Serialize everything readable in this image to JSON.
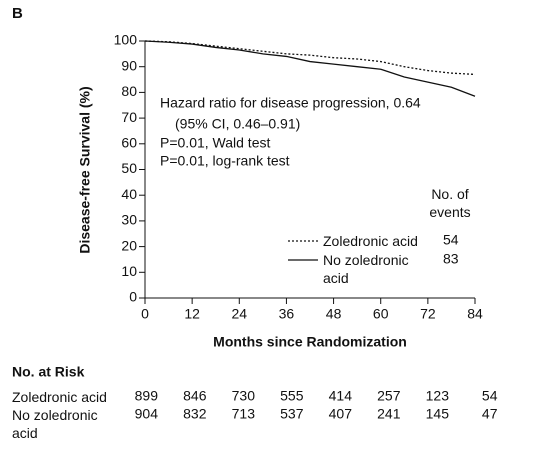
{
  "chart_data": {
    "type": "line",
    "panel_label": "B",
    "xlabel": "Months since Randomization",
    "ylabel": "Disease-free Survival (%)",
    "x": [
      0,
      6,
      12,
      18,
      24,
      30,
      36,
      42,
      48,
      54,
      60,
      66,
      72,
      78,
      84
    ],
    "xlim": [
      0,
      84
    ],
    "xticks": [
      0,
      12,
      24,
      36,
      48,
      60,
      72,
      84
    ],
    "ylim": [
      0,
      100
    ],
    "yticks": [
      0,
      10,
      20,
      30,
      40,
      50,
      60,
      70,
      80,
      90,
      100
    ],
    "series": [
      {
        "name": "Zoledronic acid",
        "color": "#111111",
        "dashed": true,
        "events": 54,
        "values": [
          100,
          99.7,
          99,
          98,
          97,
          96,
          95,
          94.5,
          93.5,
          93,
          92,
          90,
          88.5,
          87.5,
          87
        ]
      },
      {
        "name": "No zoledronic acid",
        "color": "#111111",
        "dashed": false,
        "events": 83,
        "values": [
          100,
          99.5,
          98.8,
          97.5,
          96.5,
          95,
          94,
          92,
          91,
          90,
          89,
          86,
          84,
          82,
          78.5
        ]
      }
    ],
    "legend_title": "No. of events",
    "annotations": [
      "Hazard ratio for disease progression, 0.64",
      "(95% CI, 0.46–0.91)",
      "P=0.01, Wald test",
      "P=0.01, log-rank test"
    ],
    "risk_table": {
      "title": "No. at Risk",
      "rows": [
        {
          "label": "Zoledronic acid",
          "counts": [
            899,
            846,
            730,
            555,
            414,
            257,
            123,
            54
          ]
        },
        {
          "label": "No zoledronic acid",
          "counts": [
            904,
            832,
            713,
            537,
            407,
            241,
            145,
            47
          ]
        }
      ]
    }
  }
}
